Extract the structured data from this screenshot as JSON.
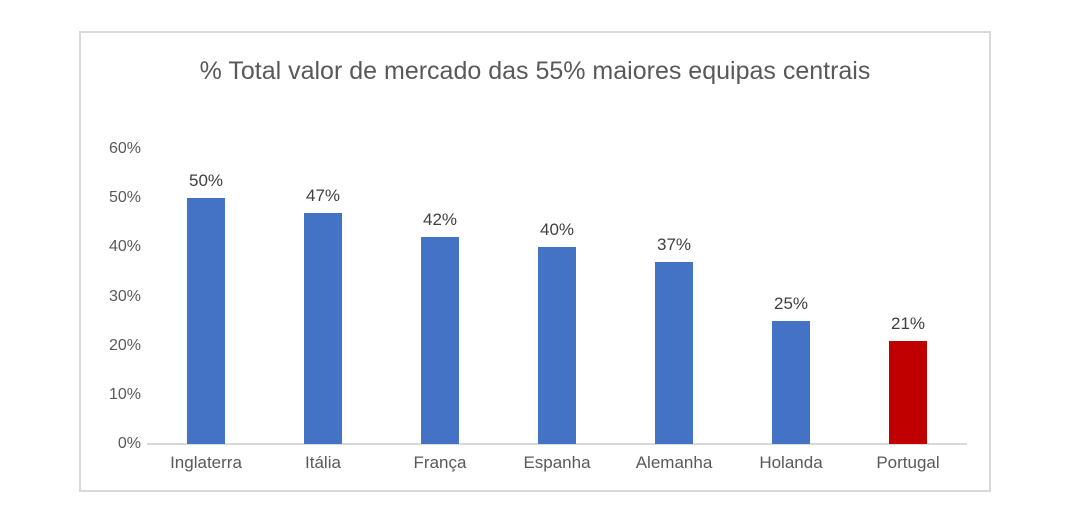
{
  "page": {
    "background_color": "#ffffff"
  },
  "chart_card": {
    "border_color": "#d9d9d9",
    "background_color": "#ffffff"
  },
  "chart_data": {
    "type": "bar",
    "title": "% Total valor de mercado das 55% maiores equipas centrais",
    "categories": [
      "Inglaterra",
      "Itália",
      "França",
      "Espanha",
      "Alemanha",
      "Holanda",
      "Portugal"
    ],
    "values": [
      50,
      47,
      42,
      40,
      37,
      25,
      21
    ],
    "value_labels": [
      "50%",
      "47%",
      "42%",
      "40%",
      "37%",
      "25%",
      "21%"
    ],
    "bar_colors": [
      "#4472C4",
      "#4472C4",
      "#4472C4",
      "#4472C4",
      "#4472C4",
      "#4472C4",
      "#C00000"
    ],
    "default_bar_color": "#4472C4",
    "highlight_category": "Portugal",
    "highlight_bar_color": "#C00000",
    "xlabel": "",
    "ylabel": "",
    "ylim": [
      0,
      60
    ],
    "yticks": [
      0,
      10,
      20,
      30,
      40,
      50,
      60
    ],
    "ytick_labels": [
      "0%",
      "10%",
      "20%",
      "30%",
      "40%",
      "50%",
      "60%"
    ],
    "grid": false,
    "legend": false,
    "title_color": "#595959",
    "axis_label_color": "#595959",
    "value_label_color": "#404040",
    "axis_line_color": "#d9d9d9"
  }
}
